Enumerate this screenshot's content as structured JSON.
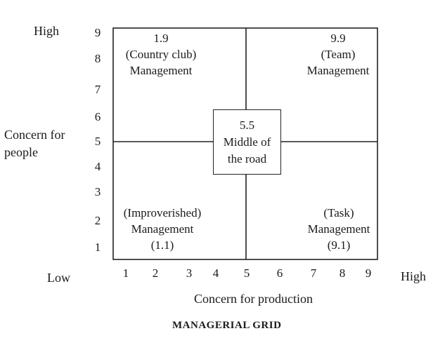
{
  "y_axis": {
    "high_label": "High",
    "title_line1": "Concern for",
    "title_line2": "people",
    "ticks": [
      "9",
      "8",
      "7",
      "6",
      "5",
      "4",
      "3",
      "2",
      "1"
    ]
  },
  "x_axis": {
    "low_label": "Low",
    "high_label": "High",
    "title": "Concern for production",
    "ticks": [
      "1",
      "2",
      "3",
      "4",
      "5",
      "6",
      "7",
      "8",
      "9"
    ]
  },
  "caption": "MANAGERIAL GRID",
  "quadrants": {
    "top_left": {
      "line1": "1.9",
      "line2": "(Country club)",
      "line3": "Management"
    },
    "top_right": {
      "line1": "9.9",
      "line2": "(Team)",
      "line3": "Management"
    },
    "bottom_left": {
      "line1": "(Improverished)",
      "line2": "Management",
      "line3": "(1.1)"
    },
    "bottom_right": {
      "line1": "(Task)",
      "line2": "Management",
      "line3": "(9.1)"
    }
  },
  "center": {
    "line1": "5.5",
    "line2": "Middle of",
    "line3": "the road"
  }
}
